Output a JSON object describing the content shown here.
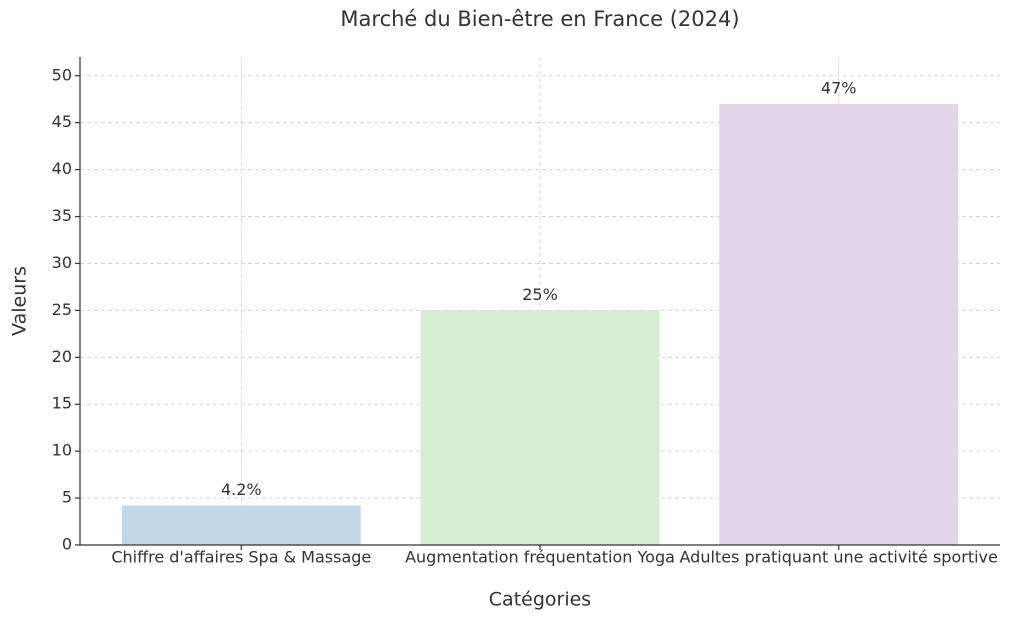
{
  "chart_data": {
    "type": "bar",
    "title": "Marché du Bien-être en France (2024)",
    "x_label": "Catégories",
    "y_label": "Valeurs",
    "categories": [
      "Chiffre d'affaires Spa & Massage",
      "Augmentation fréquentation Yoga",
      "Adultes pratiquant une activité sportive"
    ],
    "values": [
      4.2,
      25,
      47
    ],
    "value_labels": [
      "4.2%",
      "25%",
      "47%"
    ],
    "colors": [
      "#c2d8ea",
      "#d5eed2",
      "#e2d5ea"
    ],
    "ylim": [
      0,
      52
    ],
    "yticks": [
      0,
      5,
      10,
      15,
      20,
      25,
      30,
      35,
      40,
      45,
      50
    ],
    "grid": true
  }
}
